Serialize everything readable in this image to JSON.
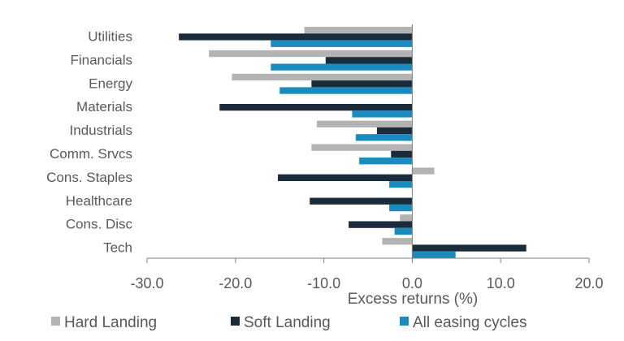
{
  "chart_data": {
    "type": "bar",
    "orientation": "horizontal",
    "xlabel": "Excess returns (%)",
    "xlim": [
      -30,
      20
    ],
    "x_ticks": [
      "-30.0",
      "-20.0",
      "-10.0",
      "0.0",
      "10.0",
      "20.0"
    ],
    "x_tick_values": [
      -30,
      -20,
      -10,
      0,
      10,
      20
    ],
    "grid": false,
    "legend_position": "bottom",
    "categories": [
      "Utilities",
      "Financials",
      "Energy",
      "Materials",
      "Industrials",
      "Comm. Srvcs",
      "Cons. Staples",
      "Healthcare",
      "Cons. Disc",
      "Tech"
    ],
    "series": [
      {
        "name": "Hard Landing",
        "color": "#b3b3b3",
        "values": [
          -12.2,
          -23.0,
          -20.4,
          0.0,
          -10.8,
          -11.4,
          2.5,
          0.0,
          -1.4,
          -3.4
        ]
      },
      {
        "name": "Soft Landing",
        "color": "#1a2b3c",
        "values": [
          -26.4,
          -9.8,
          -11.4,
          -21.8,
          -4.0,
          -2.4,
          -15.2,
          -11.6,
          -7.2,
          12.9
        ]
      },
      {
        "name": "All easing cycles",
        "color": "#1a8bbf",
        "values": [
          -16.0,
          -16.0,
          -15.0,
          -6.8,
          -6.4,
          -6.0,
          -2.6,
          -2.6,
          -2.0,
          4.9
        ]
      }
    ]
  }
}
